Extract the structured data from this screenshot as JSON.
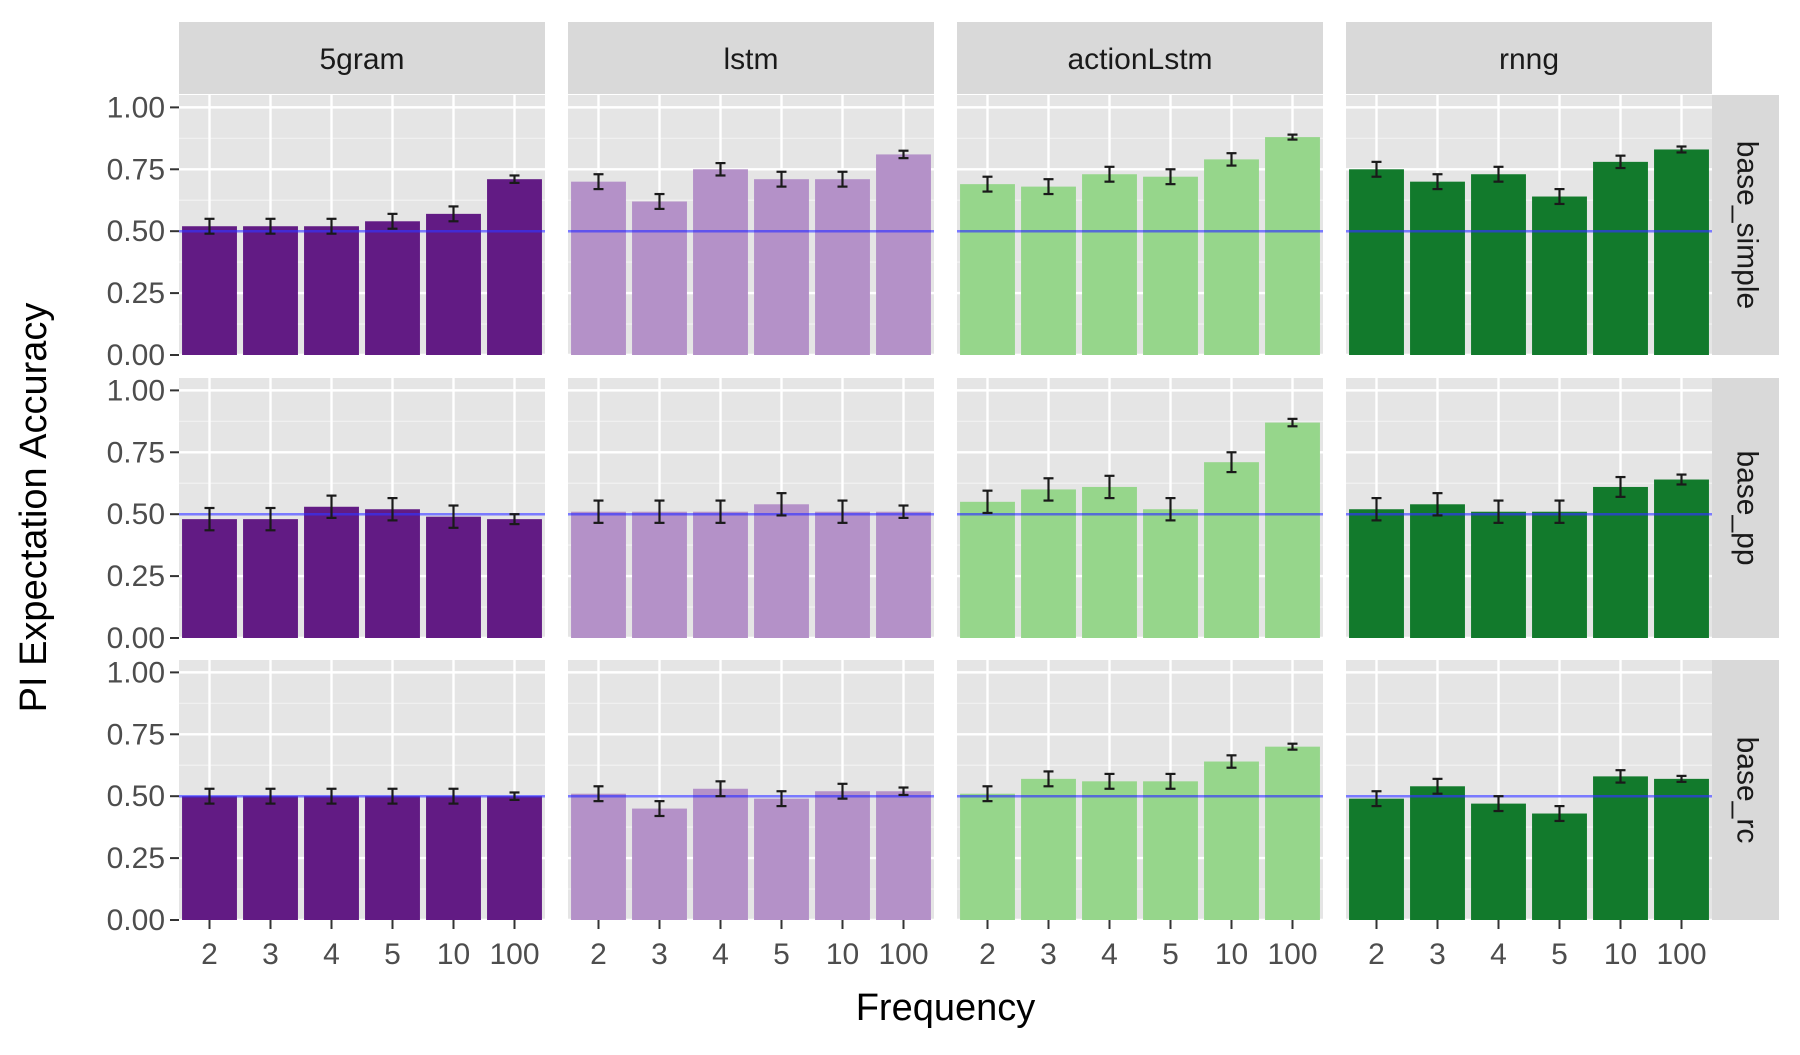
{
  "chart_data": {
    "type": "bar",
    "xlabel": "Frequency",
    "ylabel": "PI Expectation Accuracy",
    "categories": [
      "2",
      "3",
      "4",
      "5",
      "10",
      "100"
    ],
    "ylim": [
      0,
      1.05
    ],
    "yticks": [
      "0.00",
      "0.25",
      "0.50",
      "0.75",
      "1.00"
    ],
    "ytick_values": [
      0,
      0.25,
      0.5,
      0.75,
      1.0
    ],
    "reference_line": 0.5,
    "reference_color": "#3333ff",
    "grid": true,
    "panel_background": "#e5e5e5",
    "strip_background": "#d9d9d9",
    "columns": [
      {
        "label": "5gram",
        "color": "#621b84"
      },
      {
        "label": "lstm",
        "color": "#b491c8"
      },
      {
        "label": "actionLstm",
        "color": "#96d68b"
      },
      {
        "label": "rnng",
        "color": "#127a2c"
      }
    ],
    "rows": [
      {
        "label": "base_simple",
        "panels": [
          {
            "values": [
              0.52,
              0.52,
              0.52,
              0.54,
              0.57,
              0.71
            ],
            "errors": [
              0.03,
              0.03,
              0.03,
              0.03,
              0.03,
              0.015
            ]
          },
          {
            "values": [
              0.7,
              0.62,
              0.75,
              0.71,
              0.71,
              0.81
            ],
            "errors": [
              0.03,
              0.03,
              0.025,
              0.03,
              0.03,
              0.015
            ]
          },
          {
            "values": [
              0.69,
              0.68,
              0.73,
              0.72,
              0.79,
              0.88
            ],
            "errors": [
              0.03,
              0.03,
              0.03,
              0.03,
              0.025,
              0.01
            ]
          },
          {
            "values": [
              0.75,
              0.7,
              0.73,
              0.64,
              0.78,
              0.83
            ],
            "errors": [
              0.03,
              0.03,
              0.03,
              0.03,
              0.025,
              0.012
            ]
          }
        ]
      },
      {
        "label": "base_pp",
        "panels": [
          {
            "values": [
              0.48,
              0.48,
              0.53,
              0.52,
              0.49,
              0.48
            ],
            "errors": [
              0.045,
              0.045,
              0.045,
              0.045,
              0.045,
              0.02
            ]
          },
          {
            "values": [
              0.51,
              0.51,
              0.51,
              0.54,
              0.51,
              0.51
            ],
            "errors": [
              0.045,
              0.045,
              0.045,
              0.045,
              0.045,
              0.025
            ]
          },
          {
            "values": [
              0.55,
              0.6,
              0.61,
              0.52,
              0.71,
              0.87
            ],
            "errors": [
              0.045,
              0.045,
              0.045,
              0.045,
              0.04,
              0.015
            ]
          },
          {
            "values": [
              0.52,
              0.54,
              0.51,
              0.51,
              0.61,
              0.64
            ],
            "errors": [
              0.045,
              0.045,
              0.045,
              0.045,
              0.04,
              0.02
            ]
          }
        ]
      },
      {
        "label": "base_rc",
        "panels": [
          {
            "values": [
              0.5,
              0.5,
              0.5,
              0.5,
              0.5,
              0.5
            ],
            "errors": [
              0.03,
              0.03,
              0.03,
              0.03,
              0.03,
              0.015
            ]
          },
          {
            "values": [
              0.51,
              0.45,
              0.53,
              0.49,
              0.52,
              0.52
            ],
            "errors": [
              0.03,
              0.03,
              0.03,
              0.03,
              0.03,
              0.015
            ]
          },
          {
            "values": [
              0.51,
              0.57,
              0.56,
              0.56,
              0.64,
              0.7
            ],
            "errors": [
              0.03,
              0.03,
              0.03,
              0.03,
              0.025,
              0.012
            ]
          },
          {
            "values": [
              0.49,
              0.54,
              0.47,
              0.43,
              0.58,
              0.57
            ],
            "errors": [
              0.03,
              0.03,
              0.03,
              0.03,
              0.025,
              0.012
            ]
          }
        ]
      }
    ]
  }
}
